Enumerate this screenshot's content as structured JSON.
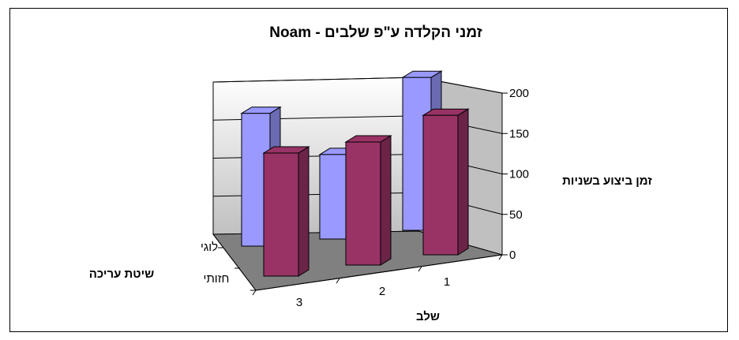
{
  "chart_data": {
    "type": "bar",
    "title": "זמני הקלדה ע\"פ שלבים - Noam",
    "xlabel": "שלב",
    "ylabel": "זמן ביצוע בשניות",
    "zlabel": "שיטת עריכה",
    "categories": [
      "1",
      "2",
      "3"
    ],
    "series": [
      {
        "name": "לוגי",
        "values": [
          190,
          105,
          165
        ]
      },
      {
        "name": "חזותי",
        "values": [
          170,
          150,
          150
        ]
      }
    ],
    "ylim": [
      0,
      200
    ],
    "yticks": [
      "0",
      "50",
      "100",
      "150",
      "200"
    ],
    "colors": {
      "series0": "#9999FF",
      "series1": "#993366",
      "wall": "#C0C0C0",
      "floor": "#808080"
    },
    "grid": true,
    "chart3d": true
  }
}
